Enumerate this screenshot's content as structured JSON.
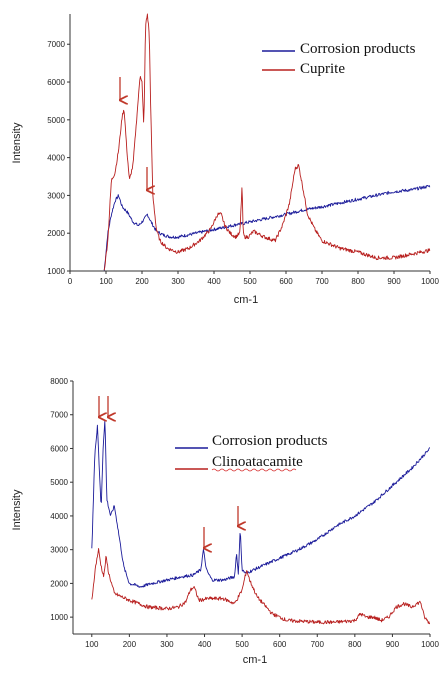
{
  "chart_data": [
    {
      "type": "line",
      "xlabel": "cm-1",
      "ylabel": "Intensity",
      "xlim": [
        0,
        1000
      ],
      "ylim": [
        1000,
        7800
      ],
      "x_ticks": [
        "0",
        "100",
        "200",
        "300",
        "400",
        "500",
        "600",
        "700",
        "800",
        "900",
        "1000"
      ],
      "y_ticks": [
        "1000",
        "2000",
        "3000",
        "4000",
        "5000",
        "6000",
        "7000"
      ],
      "legend_position": "top-right",
      "series": [
        {
          "name": "Corrosion products",
          "color": "#1c1c9a",
          "x": [
            95,
            105,
            115,
            125,
            135,
            145,
            160,
            175,
            190,
            205,
            215,
            225,
            240,
            260,
            280,
            300,
            350,
            400,
            450,
            470,
            480,
            490,
            500,
            550,
            600,
            650,
            700,
            750,
            800,
            850,
            900,
            950,
            1000
          ],
          "y": [
            1000,
            2000,
            2500,
            2850,
            3000,
            2700,
            2550,
            2300,
            2200,
            2350,
            2500,
            2300,
            2050,
            1950,
            1900,
            1900,
            2000,
            2100,
            2200,
            2250,
            2250,
            2280,
            2300,
            2400,
            2500,
            2620,
            2700,
            2800,
            2900,
            3000,
            3100,
            3150,
            3250
          ]
        },
        {
          "name": "Cuprite",
          "color": "#b8201f",
          "x": [
            95,
            105,
            115,
            125,
            135,
            145,
            150,
            158,
            165,
            175,
            185,
            195,
            200,
            205,
            210,
            215,
            220,
            225,
            230,
            240,
            250,
            270,
            300,
            330,
            360,
            390,
            410,
            420,
            430,
            445,
            460,
            472,
            478,
            481,
            485,
            495,
            510,
            540,
            570,
            590,
            610,
            625,
            635,
            645,
            660,
            680,
            700,
            750,
            800,
            850,
            900,
            950,
            1000
          ],
          "y": [
            1000,
            1800,
            3400,
            3600,
            4200,
            5100,
            5300,
            4200,
            3400,
            3800,
            5000,
            6200,
            6000,
            4800,
            7500,
            7800,
            7300,
            5000,
            3000,
            2100,
            1800,
            1600,
            1500,
            1600,
            1800,
            2100,
            2500,
            2500,
            2200,
            2000,
            1900,
            2000,
            3300,
            2000,
            1900,
            1900,
            2050,
            1900,
            1800,
            2200,
            2800,
            3700,
            3800,
            3300,
            2500,
            2100,
            1800,
            1600,
            1500,
            1350,
            1350,
            1450,
            1550
          ]
        }
      ]
    },
    {
      "type": "line",
      "xlabel": "cm-1",
      "ylabel": "Intensity",
      "xlim": [
        50,
        1000
      ],
      "ylim": [
        500,
        8000
      ],
      "x_ticks": [
        "100",
        "200",
        "300",
        "400",
        "500",
        "600",
        "700",
        "800",
        "900",
        "1000"
      ],
      "y_ticks": [
        "1000",
        "2000",
        "3000",
        "4000",
        "5000",
        "6000",
        "7000",
        "8000"
      ],
      "legend_position": "center",
      "series": [
        {
          "name": "Corrosion products",
          "color": "#1c1c9a",
          "x": [
            100,
            108,
            115,
            120,
            125,
            130,
            135,
            140,
            150,
            160,
            170,
            185,
            200,
            230,
            260,
            300,
            340,
            370,
            390,
            397,
            405,
            420,
            450,
            480,
            485,
            490,
            495,
            500,
            510,
            550,
            600,
            650,
            700,
            750,
            800,
            850,
            900,
            950,
            1000
          ],
          "y": [
            3000,
            5800,
            6700,
            5400,
            4200,
            6000,
            6900,
            4500,
            4000,
            4300,
            3600,
            2500,
            2000,
            1900,
            2000,
            2100,
            2200,
            2250,
            2400,
            3000,
            2400,
            2100,
            2100,
            2200,
            2900,
            2300,
            3600,
            2400,
            2300,
            2500,
            2750,
            3000,
            3300,
            3700,
            4000,
            4400,
            4900,
            5400,
            6000
          ]
        },
        {
          "name": "Clinoatacamite",
          "color": "#b8201f",
          "x": [
            100,
            110,
            118,
            125,
            132,
            138,
            145,
            160,
            200,
            250,
            300,
            330,
            350,
            362,
            372,
            385,
            410,
            450,
            480,
            500,
            512,
            520,
            540,
            580,
            620,
            700,
            750,
            800,
            815,
            830,
            850,
            870,
            890,
            910,
            930,
            950,
            965,
            975,
            985,
            1000
          ],
          "y": [
            1500,
            2500,
            3000,
            2500,
            2200,
            2800,
            2300,
            1700,
            1500,
            1300,
            1250,
            1300,
            1450,
            1800,
            1900,
            1500,
            1550,
            1550,
            1400,
            1800,
            2400,
            2100,
            1600,
            1100,
            900,
            850,
            850,
            900,
            1100,
            1000,
            1000,
            900,
            1000,
            1300,
            1400,
            1300,
            1400,
            1450,
            1000,
            800
          ]
        }
      ]
    }
  ]
}
